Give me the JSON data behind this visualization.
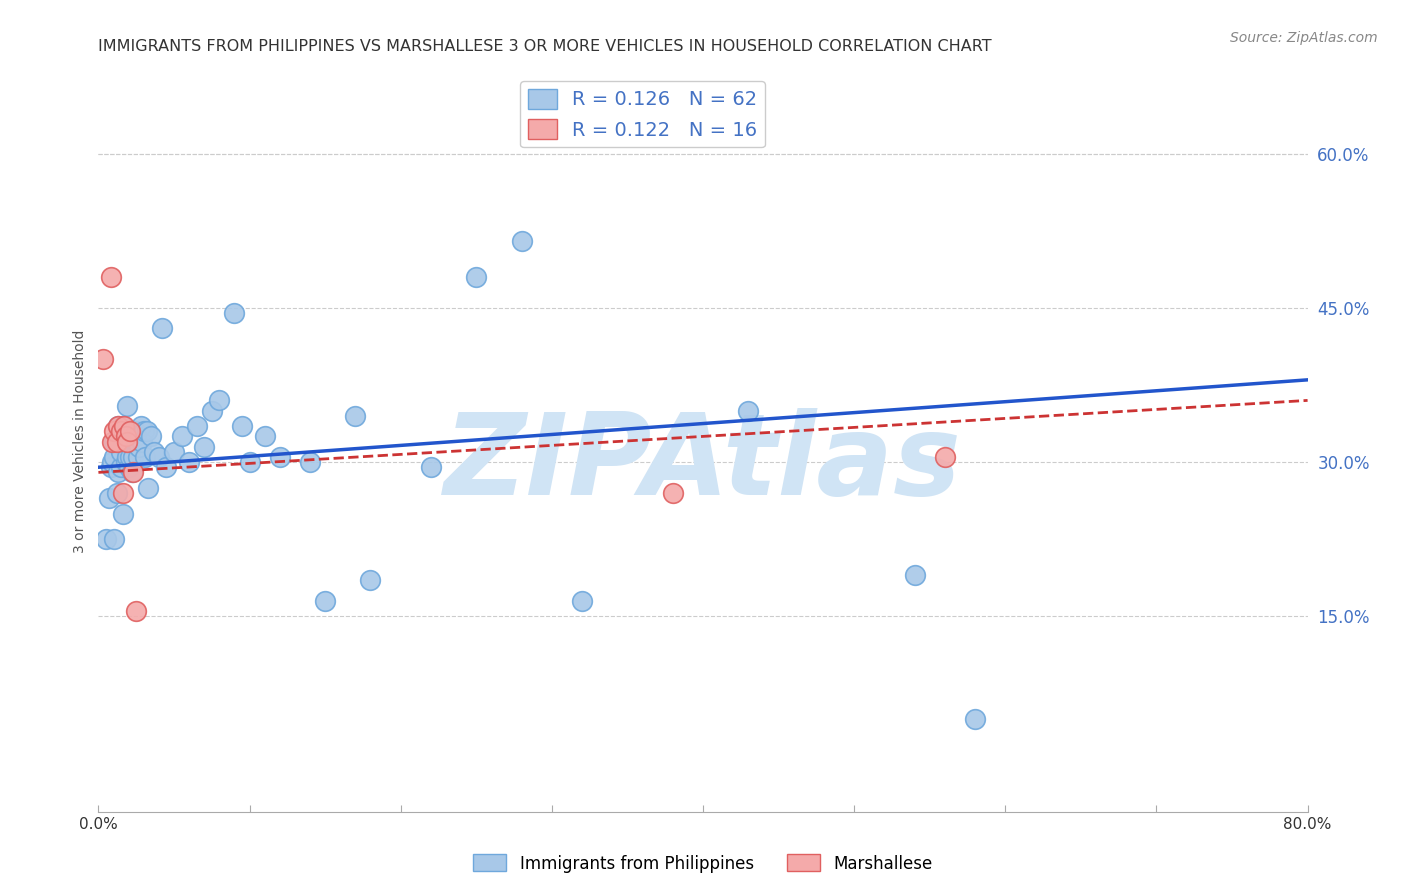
{
  "title": "IMMIGRANTS FROM PHILIPPINES VS MARSHALLESE 3 OR MORE VEHICLES IN HOUSEHOLD CORRELATION CHART",
  "source": "Source: ZipAtlas.com",
  "ylabel": "3 or more Vehicles in Household",
  "xlim": [
    0.0,
    0.8
  ],
  "ylim": [
    -0.04,
    0.68
  ],
  "xticks": [
    0.0,
    0.1,
    0.2,
    0.3,
    0.4,
    0.5,
    0.6,
    0.7,
    0.8
  ],
  "yticks_right": [
    0.15,
    0.3,
    0.45,
    0.6
  ],
  "ytick_labels_right": [
    "15.0%",
    "30.0%",
    "45.0%",
    "60.0%"
  ],
  "philippines_scatter_x": [
    0.005,
    0.007,
    0.008,
    0.009,
    0.01,
    0.01,
    0.01,
    0.012,
    0.013,
    0.013,
    0.015,
    0.015,
    0.015,
    0.016,
    0.016,
    0.018,
    0.018,
    0.019,
    0.019,
    0.02,
    0.02,
    0.021,
    0.022,
    0.023,
    0.024,
    0.025,
    0.026,
    0.027,
    0.028,
    0.029,
    0.03,
    0.031,
    0.032,
    0.033,
    0.035,
    0.037,
    0.04,
    0.042,
    0.045,
    0.05,
    0.055,
    0.06,
    0.065,
    0.07,
    0.075,
    0.08,
    0.09,
    0.095,
    0.1,
    0.11,
    0.12,
    0.14,
    0.15,
    0.17,
    0.18,
    0.22,
    0.25,
    0.28,
    0.32,
    0.43,
    0.54,
    0.58
  ],
  "philippines_scatter_y": [
    0.225,
    0.265,
    0.295,
    0.3,
    0.225,
    0.305,
    0.32,
    0.27,
    0.29,
    0.335,
    0.295,
    0.31,
    0.325,
    0.25,
    0.335,
    0.3,
    0.33,
    0.305,
    0.355,
    0.295,
    0.325,
    0.305,
    0.29,
    0.305,
    0.33,
    0.325,
    0.305,
    0.315,
    0.335,
    0.32,
    0.33,
    0.305,
    0.33,
    0.275,
    0.325,
    0.31,
    0.305,
    0.43,
    0.295,
    0.31,
    0.325,
    0.3,
    0.335,
    0.315,
    0.35,
    0.36,
    0.445,
    0.335,
    0.3,
    0.325,
    0.305,
    0.3,
    0.165,
    0.345,
    0.185,
    0.295,
    0.48,
    0.515,
    0.165,
    0.35,
    0.19,
    0.05
  ],
  "marshallese_scatter_x": [
    0.003,
    0.008,
    0.009,
    0.01,
    0.012,
    0.013,
    0.015,
    0.016,
    0.017,
    0.018,
    0.019,
    0.021,
    0.023,
    0.025,
    0.38,
    0.56
  ],
  "marshallese_scatter_y": [
    0.4,
    0.48,
    0.32,
    0.33,
    0.32,
    0.335,
    0.33,
    0.27,
    0.335,
    0.325,
    0.32,
    0.33,
    0.29,
    0.155,
    0.27,
    0.305
  ],
  "philippines_line_x": [
    0.0,
    0.8
  ],
  "philippines_line_y": [
    0.295,
    0.38
  ],
  "marshallese_line_x": [
    0.0,
    0.8
  ],
  "marshallese_line_y": [
    0.29,
    0.36
  ],
  "philippine_color": "#a8c8e8",
  "philippine_edge_color": "#6fa8dc",
  "marshallese_color": "#f4aaaa",
  "marshallese_edge_color": "#e06060",
  "trendline_blue": "#2255cc",
  "trendline_pink": "#cc3333",
  "watermark_text": "ZIPAtlas",
  "watermark_color": "#d0e4f5",
  "background_color": "#ffffff",
  "title_fontsize": 11.5,
  "axis_label_fontsize": 10,
  "tick_fontsize": 11,
  "source_fontsize": 10,
  "legend_r1": "R = 0.126   N = 62",
  "legend_r2": "R = 0.122   N = 16",
  "legend_color": "#4472c4",
  "bottom_legend_1": "Immigrants from Philippines",
  "bottom_legend_2": "Marshallese"
}
